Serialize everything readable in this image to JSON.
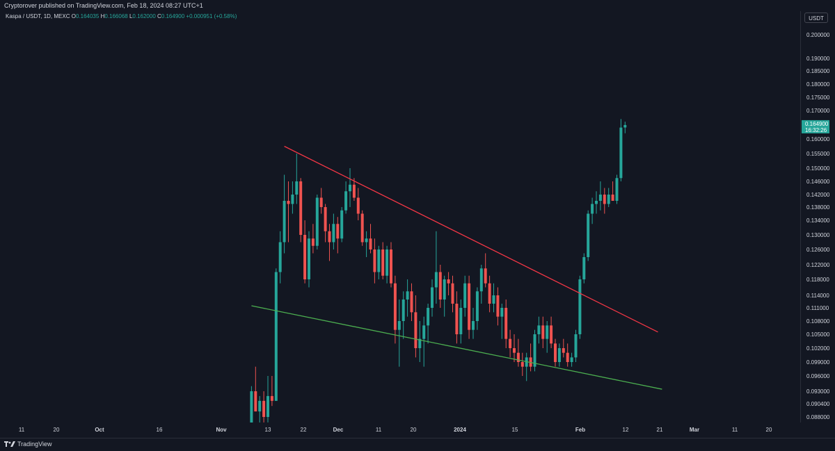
{
  "header": {
    "published": "Cryptorover published on TradingView.com, Feb 18, 2024 08:27 UTC+1"
  },
  "legend": {
    "symbol": "Kaspa / USDT, 1D, MEXC",
    "o_label": "O",
    "o_value": "0.164035",
    "h_label": "H",
    "h_value": "0.166068",
    "l_label": "L",
    "l_value": "0.162000",
    "c_label": "C",
    "c_value": "0.164900",
    "change": "+0.000951 (+0.58%)"
  },
  "currency_button": "USDT",
  "last_price": {
    "value": "0.164900",
    "countdown": "16:32:26"
  },
  "footer": {
    "brand": "TradingView"
  },
  "colors": {
    "background": "#131722",
    "up": "#26a69a",
    "down": "#ef5350",
    "resistance": "#f23645",
    "support": "#4caf50",
    "axis_text": "#d1d4dc"
  },
  "chart_data": {
    "type": "candlestick",
    "title": "Kaspa / USDT, 1D, MEXC",
    "y_tick_labels": [
      "0.200000",
      "0.190000",
      "0.185000",
      "0.180000",
      "0.175000",
      "0.170000",
      "0.160000",
      "0.155000",
      "0.150000",
      "0.146000",
      "0.142000",
      "0.138000",
      "0.134000",
      "0.130000",
      "0.126000",
      "0.122000",
      "0.118000",
      "0.114000",
      "0.111000",
      "0.108000",
      "0.105000",
      "0.102000",
      "0.099000",
      "0.096000",
      "0.093000",
      "0.090400",
      "0.088000"
    ],
    "x_tick_labels": [
      "11",
      "20",
      "Oct",
      "16",
      "Nov",
      "13",
      "22",
      "Dec",
      "11",
      "20",
      "2024",
      "15",
      "Feb",
      "12",
      "21",
      "Mar",
      "11",
      "20"
    ],
    "x_tick_labels_bold": [
      "Oct",
      "Nov",
      "Dec",
      "2024",
      "Feb",
      "Mar"
    ],
    "first_date": "2023-11-09",
    "candles": [
      [
        0.086,
        0.094,
        0.081,
        0.093
      ],
      [
        0.093,
        0.098,
        0.089,
        0.089
      ],
      [
        0.089,
        0.092,
        0.085,
        0.091
      ],
      [
        0.091,
        0.093,
        0.087,
        0.088
      ],
      [
        0.088,
        0.096,
        0.087,
        0.092
      ],
      [
        0.092,
        0.096,
        0.09,
        0.091
      ],
      [
        0.091,
        0.121,
        0.091,
        0.12
      ],
      [
        0.12,
        0.131,
        0.117,
        0.128
      ],
      [
        0.128,
        0.148,
        0.125,
        0.14
      ],
      [
        0.14,
        0.146,
        0.128,
        0.139
      ],
      [
        0.139,
        0.146,
        0.136,
        0.142
      ],
      [
        0.142,
        0.155,
        0.139,
        0.146
      ],
      [
        0.146,
        0.147,
        0.128,
        0.13
      ],
      [
        0.13,
        0.134,
        0.117,
        0.118
      ],
      [
        0.118,
        0.131,
        0.116,
        0.129
      ],
      [
        0.129,
        0.133,
        0.125,
        0.127
      ],
      [
        0.127,
        0.142,
        0.126,
        0.141
      ],
      [
        0.141,
        0.144,
        0.136,
        0.138
      ],
      [
        0.138,
        0.139,
        0.128,
        0.131
      ],
      [
        0.131,
        0.133,
        0.123,
        0.128
      ],
      [
        0.128,
        0.136,
        0.126,
        0.133
      ],
      [
        0.133,
        0.135,
        0.125,
        0.129
      ],
      [
        0.129,
        0.138,
        0.128,
        0.137
      ],
      [
        0.137,
        0.146,
        0.136,
        0.143
      ],
      [
        0.143,
        0.15,
        0.138,
        0.145
      ],
      [
        0.145,
        0.147,
        0.14,
        0.141
      ],
      [
        0.141,
        0.144,
        0.134,
        0.136
      ],
      [
        0.136,
        0.137,
        0.127,
        0.128
      ],
      [
        0.128,
        0.131,
        0.124,
        0.129
      ],
      [
        0.129,
        0.133,
        0.125,
        0.126
      ],
      [
        0.126,
        0.129,
        0.117,
        0.12
      ],
      [
        0.12,
        0.127,
        0.118,
        0.126
      ],
      [
        0.126,
        0.128,
        0.118,
        0.119
      ],
      [
        0.119,
        0.127,
        0.117,
        0.126
      ],
      [
        0.126,
        0.128,
        0.116,
        0.117
      ],
      [
        0.117,
        0.119,
        0.103,
        0.106
      ],
      [
        0.106,
        0.113,
        0.098,
        0.108
      ],
      [
        0.108,
        0.115,
        0.104,
        0.113
      ],
      [
        0.113,
        0.118,
        0.109,
        0.115
      ],
      [
        0.115,
        0.117,
        0.108,
        0.11
      ],
      [
        0.11,
        0.114,
        0.1,
        0.102
      ],
      [
        0.102,
        0.108,
        0.099,
        0.104
      ],
      [
        0.104,
        0.109,
        0.098,
        0.107
      ],
      [
        0.107,
        0.112,
        0.103,
        0.111
      ],
      [
        0.111,
        0.118,
        0.109,
        0.116
      ],
      [
        0.116,
        0.131,
        0.112,
        0.12
      ],
      [
        0.12,
        0.122,
        0.111,
        0.113
      ],
      [
        0.113,
        0.119,
        0.109,
        0.118
      ],
      [
        0.118,
        0.12,
        0.114,
        0.117
      ],
      [
        0.117,
        0.119,
        0.11,
        0.112
      ],
      [
        0.112,
        0.115,
        0.103,
        0.105
      ],
      [
        0.105,
        0.113,
        0.103,
        0.111
      ],
      [
        0.111,
        0.119,
        0.109,
        0.117
      ],
      [
        0.117,
        0.119,
        0.104,
        0.106
      ],
      [
        0.106,
        0.111,
        0.104,
        0.108
      ],
      [
        0.108,
        0.116,
        0.106,
        0.115
      ],
      [
        0.115,
        0.122,
        0.112,
        0.121
      ],
      [
        0.121,
        0.125,
        0.116,
        0.117
      ],
      [
        0.117,
        0.119,
        0.11,
        0.112
      ],
      [
        0.112,
        0.117,
        0.11,
        0.114
      ],
      [
        0.114,
        0.116,
        0.107,
        0.109
      ],
      [
        0.109,
        0.112,
        0.104,
        0.111
      ],
      [
        0.111,
        0.113,
        0.102,
        0.104
      ],
      [
        0.104,
        0.106,
        0.1,
        0.102
      ],
      [
        0.102,
        0.105,
        0.099,
        0.101
      ],
      [
        0.101,
        0.104,
        0.098,
        0.099
      ],
      [
        0.099,
        0.101,
        0.096,
        0.098
      ],
      [
        0.098,
        0.101,
        0.095,
        0.1
      ],
      [
        0.1,
        0.103,
        0.097,
        0.098
      ],
      [
        0.098,
        0.106,
        0.097,
        0.105
      ],
      [
        0.105,
        0.109,
        0.103,
        0.107
      ],
      [
        0.107,
        0.109,
        0.102,
        0.104
      ],
      [
        0.104,
        0.108,
        0.101,
        0.107
      ],
      [
        0.107,
        0.109,
        0.102,
        0.103
      ],
      [
        0.103,
        0.104,
        0.098,
        0.099
      ],
      [
        0.099,
        0.103,
        0.098,
        0.102
      ],
      [
        0.102,
        0.104,
        0.1,
        0.101
      ],
      [
        0.101,
        0.103,
        0.098,
        0.099
      ],
      [
        0.099,
        0.101,
        0.098,
        0.1
      ],
      [
        0.1,
        0.106,
        0.099,
        0.105
      ],
      [
        0.105,
        0.119,
        0.104,
        0.118
      ],
      [
        0.118,
        0.125,
        0.117,
        0.124
      ],
      [
        0.124,
        0.137,
        0.123,
        0.136
      ],
      [
        0.136,
        0.141,
        0.133,
        0.139
      ],
      [
        0.139,
        0.143,
        0.136,
        0.14
      ],
      [
        0.14,
        0.146,
        0.137,
        0.142
      ],
      [
        0.142,
        0.144,
        0.136,
        0.139
      ],
      [
        0.139,
        0.144,
        0.138,
        0.142
      ],
      [
        0.142,
        0.146,
        0.14,
        0.14
      ],
      [
        0.14,
        0.148,
        0.139,
        0.147
      ],
      [
        0.147,
        0.167,
        0.146,
        0.164
      ],
      [
        0.164035,
        0.166068,
        0.162,
        0.1649
      ]
    ],
    "trendlines": [
      {
        "role": "resistance",
        "color": "#f23645",
        "from": [
          "2023-11-17",
          0.1575
        ],
        "to": [
          "2024-02-16",
          0.1055
        ]
      },
      {
        "role": "support",
        "color": "#4caf50",
        "from": [
          "2023-11-09",
          0.1115
        ],
        "to": [
          "2024-02-17",
          0.0934
        ]
      }
    ]
  }
}
